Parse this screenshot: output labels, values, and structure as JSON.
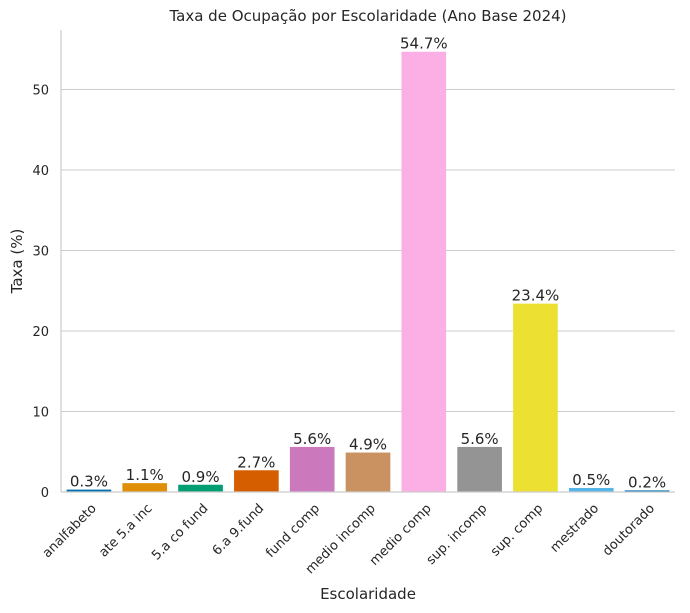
{
  "chart_data": {
    "type": "bar",
    "title": "Taxa de Ocupação por Escolaridade (Ano Base 2024)",
    "xlabel": "Escolaridade",
    "ylabel": "Taxa (%)",
    "ylim": [
      0,
      57.4
    ],
    "yticks": [
      0,
      10,
      20,
      30,
      40,
      50
    ],
    "grid": "horizontal",
    "categories": [
      "analfabeto",
      "ate 5.a inc",
      "5.a co fund",
      "6.a 9.fund",
      "fund comp",
      "medio incomp",
      "medio comp",
      "sup. incomp",
      "sup. comp",
      "mestrado",
      "doutorado"
    ],
    "values": [
      0.3,
      1.1,
      0.9,
      2.7,
      5.6,
      4.9,
      54.7,
      5.6,
      23.4,
      0.5,
      0.2
    ],
    "value_labels": [
      "0.3%",
      "1.1%",
      "0.9%",
      "2.7%",
      "5.6%",
      "4.9%",
      "54.7%",
      "5.6%",
      "23.4%",
      "0.5%",
      "0.2%"
    ],
    "colors": [
      "#0173b2",
      "#de8f05",
      "#029e73",
      "#d55e00",
      "#cc78bc",
      "#ca9161",
      "#fbafe4",
      "#949494",
      "#ece133",
      "#56b4e9",
      "#0173b2"
    ]
  }
}
